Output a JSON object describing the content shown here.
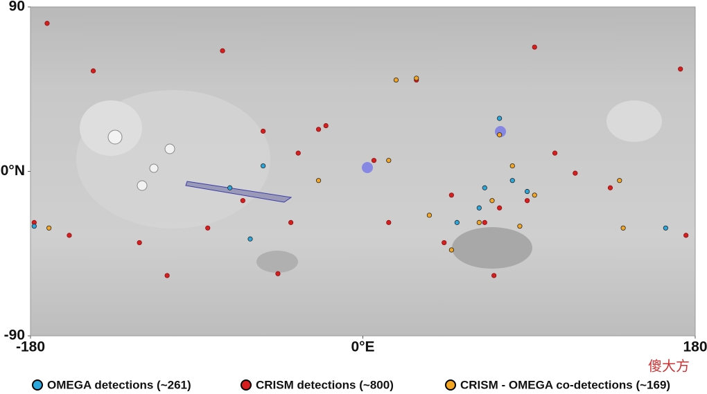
{
  "map": {
    "xlim": [
      -180,
      180
    ],
    "ylim": [
      -90,
      90
    ],
    "xticks": [
      -180,
      {
        "value": 0,
        "label": "0°E"
      },
      180
    ],
    "yticks": [
      90,
      {
        "value": 0,
        "label": "0°N"
      },
      -90
    ],
    "series": [
      {
        "name": "OMEGA detections (~261)",
        "color": "#2aa7dc",
        "x": [
          74,
          81,
          63,
          -54,
          -72,
          164,
          -61,
          -178,
          66,
          89,
          51
        ],
        "y": [
          29,
          -5,
          -20,
          3,
          -9,
          -31,
          -37,
          -30,
          -9,
          -11,
          -28
        ]
      },
      {
        "name": "CRISM detections (~800)",
        "color": "#d61e1e",
        "x": [
          -171,
          -76,
          -146,
          -24,
          -20,
          29,
          48,
          66,
          74,
          14,
          -84,
          -121,
          -159,
          -39,
          134,
          175,
          93,
          172,
          104,
          -35,
          -54,
          6,
          44,
          -46,
          -106,
          71,
          89,
          115,
          -178,
          -65
        ],
        "y": [
          81,
          66,
          55,
          23,
          25,
          50,
          -13,
          -28,
          -20,
          -28,
          -31,
          -39,
          -35,
          -28,
          -9,
          -35,
          68,
          56,
          10,
          10,
          22,
          6,
          -39,
          -56,
          -57,
          -57,
          -16,
          -1,
          -28,
          -16
        ]
      },
      {
        "name": "CRISM - OMEGA co-detections (~169)",
        "color": "#f4a623",
        "x": [
          29,
          18,
          74,
          81,
          93,
          70,
          48,
          -24,
          14,
          139,
          -170,
          141,
          63,
          85,
          36
        ],
        "y": [
          51,
          50,
          20,
          3,
          -13,
          -16,
          -43,
          -5,
          6,
          -5,
          -31,
          -31,
          -28,
          -30,
          -24
        ]
      }
    ]
  },
  "watermark": "傻大方"
}
